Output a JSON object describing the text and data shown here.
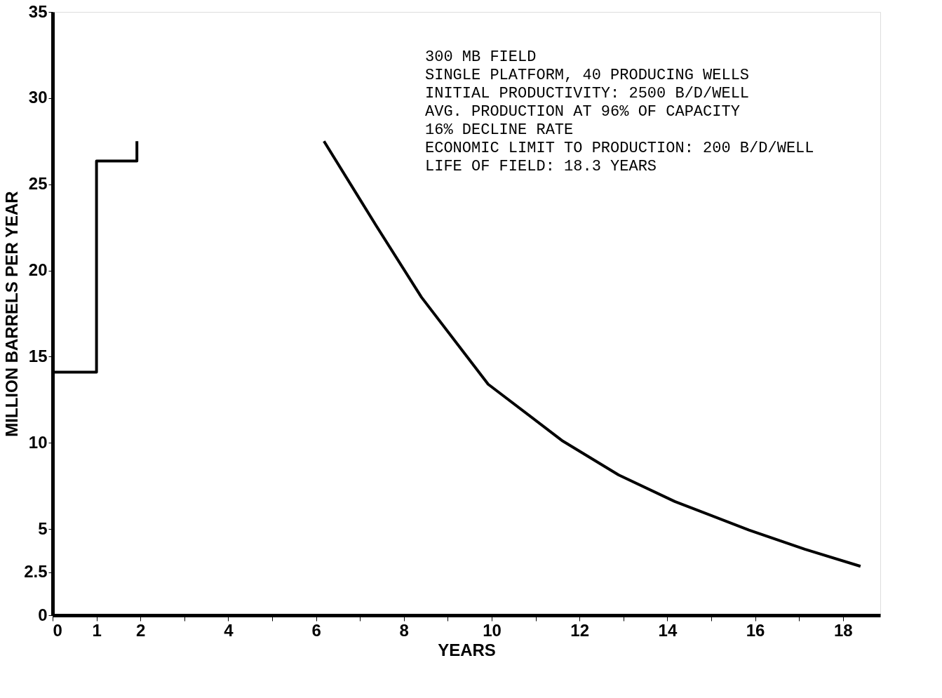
{
  "chart_data": {
    "type": "line",
    "xlabel": "YEARS",
    "ylabel": "MILLION BARRELS PER YEAR",
    "series": [
      {
        "color": "#000000",
        "x": [
          0,
          1,
          1,
          1.92,
          1.92,
          null,
          6.18,
          7.37,
          8.4,
          9.92,
          11.62,
          12.89,
          14.17,
          15.86,
          17.13,
          18.4
        ],
        "values": [
          14.1,
          14.1,
          26.35,
          26.35,
          27.5,
          null,
          27.5,
          22.6,
          18.45,
          13.4,
          10.1,
          8.14,
          6.6,
          4.94,
          3.83,
          2.84
        ]
      }
    ],
    "xlim": [
      0,
      18.85
    ],
    "ylim": [
      0,
      35
    ],
    "xticks": [
      0,
      1,
      2,
      {
        "value": 3,
        "label": null
      },
      4,
      {
        "value": 5,
        "label": null
      },
      6,
      {
        "value": 7,
        "label": null
      },
      8,
      {
        "value": 9,
        "label": null
      },
      10,
      {
        "value": 11,
        "label": null
      },
      12,
      {
        "value": 13,
        "label": null
      },
      14,
      {
        "value": 15,
        "label": null
      },
      16,
      {
        "value": 17,
        "label": null
      },
      18
    ],
    "yticks": [
      0,
      2.5,
      5,
      10,
      15,
      20,
      25,
      30,
      35
    ],
    "grid": false,
    "legend": false,
    "marker": "none",
    "line_style": "solid",
    "annotations": [
      "300 MB FIELD",
      "SINGLE PLATFORM, 40 PRODUCING WELLS",
      "INITIAL PRODUCTIVITY: 2500 B/D/WELL",
      "AVG. PRODUCTION AT 96% OF CAPACITY",
      "16% DECLINE RATE",
      "ECONOMIC LIMIT TO PRODUCTION: 200 B/D/WELL",
      "LIFE OF FIELD: 18.3 YEARS"
    ]
  }
}
